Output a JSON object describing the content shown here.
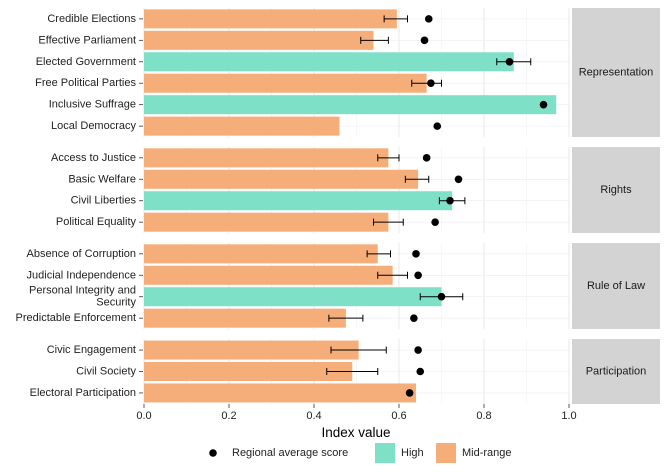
{
  "chart_data": {
    "type": "bar",
    "orientation": "horizontal",
    "xlabel": "Index value",
    "xlim": [
      0,
      1
    ],
    "x_ticks": [
      "0.0",
      "0.2",
      "0.4",
      "0.6",
      "0.8",
      "1.0"
    ],
    "grid": true,
    "legend_position": "bottom",
    "legend": {
      "dot_label": "Regional average score",
      "items": [
        {
          "label": "High",
          "color": "#7fe0c8"
        },
        {
          "label": "Mid-range",
          "color": "#f5ad7a"
        }
      ]
    },
    "colors": {
      "High": "#7fe0c8",
      "Mid-range": "#f5ad7a",
      "strip": "#d3d3d3",
      "dot": "#000000"
    },
    "panels": [
      {
        "name": "Representation",
        "rows": [
          {
            "label": "Credible Elections",
            "value": 0.595,
            "category": "Mid-range",
            "err": [
              0.565,
              0.62
            ],
            "avg": 0.67
          },
          {
            "label": "Effective Parliament",
            "value": 0.54,
            "category": "Mid-range",
            "err": [
              0.51,
              0.575
            ],
            "avg": 0.66
          },
          {
            "label": "Elected Government",
            "value": 0.87,
            "category": "High",
            "err": [
              0.83,
              0.91
            ],
            "avg": 0.86
          },
          {
            "label": "Free Political Parties",
            "value": 0.665,
            "category": "Mid-range",
            "err": [
              0.63,
              0.7
            ],
            "avg": 0.675
          },
          {
            "label": "Inclusive Suffrage",
            "value": 0.97,
            "category": "High",
            "err": null,
            "avg": 0.94
          },
          {
            "label": "Local Democracy",
            "value": 0.46,
            "category": "Mid-range",
            "err": null,
            "avg": 0.69
          }
        ]
      },
      {
        "name": "Rights",
        "rows": [
          {
            "label": "Access to Justice",
            "value": 0.575,
            "category": "Mid-range",
            "err": [
              0.55,
              0.6
            ],
            "avg": 0.665
          },
          {
            "label": "Basic Welfare",
            "value": 0.645,
            "category": "Mid-range",
            "err": [
              0.615,
              0.67
            ],
            "avg": 0.74
          },
          {
            "label": "Civil Liberties",
            "value": 0.725,
            "category": "High",
            "err": [
              0.695,
              0.755
            ],
            "avg": 0.72
          },
          {
            "label": "Political Equality",
            "value": 0.575,
            "category": "Mid-range",
            "err": [
              0.54,
              0.61
            ],
            "avg": 0.685
          }
        ]
      },
      {
        "name": "Rule of Law",
        "rows": [
          {
            "label": "Absence of Corruption",
            "value": 0.55,
            "category": "Mid-range",
            "err": [
              0.525,
              0.58
            ],
            "avg": 0.64
          },
          {
            "label": "Judicial Independence",
            "value": 0.585,
            "category": "Mid-range",
            "err": [
              0.55,
              0.62
            ],
            "avg": 0.645
          },
          {
            "label": "Personal Integrity and\nSecurity",
            "value": 0.7,
            "category": "High",
            "err": [
              0.65,
              0.75
            ],
            "avg": 0.7
          },
          {
            "label": "Predictable Enforcement",
            "value": 0.475,
            "category": "Mid-range",
            "err": [
              0.435,
              0.515
            ],
            "avg": 0.635
          }
        ]
      },
      {
        "name": "Participation",
        "rows": [
          {
            "label": "Civic Engagement",
            "value": 0.505,
            "category": "Mid-range",
            "err": [
              0.44,
              0.57
            ],
            "avg": 0.645
          },
          {
            "label": "Civil Society",
            "value": 0.49,
            "category": "Mid-range",
            "err": [
              0.43,
              0.55
            ],
            "avg": 0.65
          },
          {
            "label": "Electoral Participation",
            "value": 0.64,
            "category": "Mid-range",
            "err": null,
            "avg": 0.625
          }
        ]
      }
    ]
  }
}
